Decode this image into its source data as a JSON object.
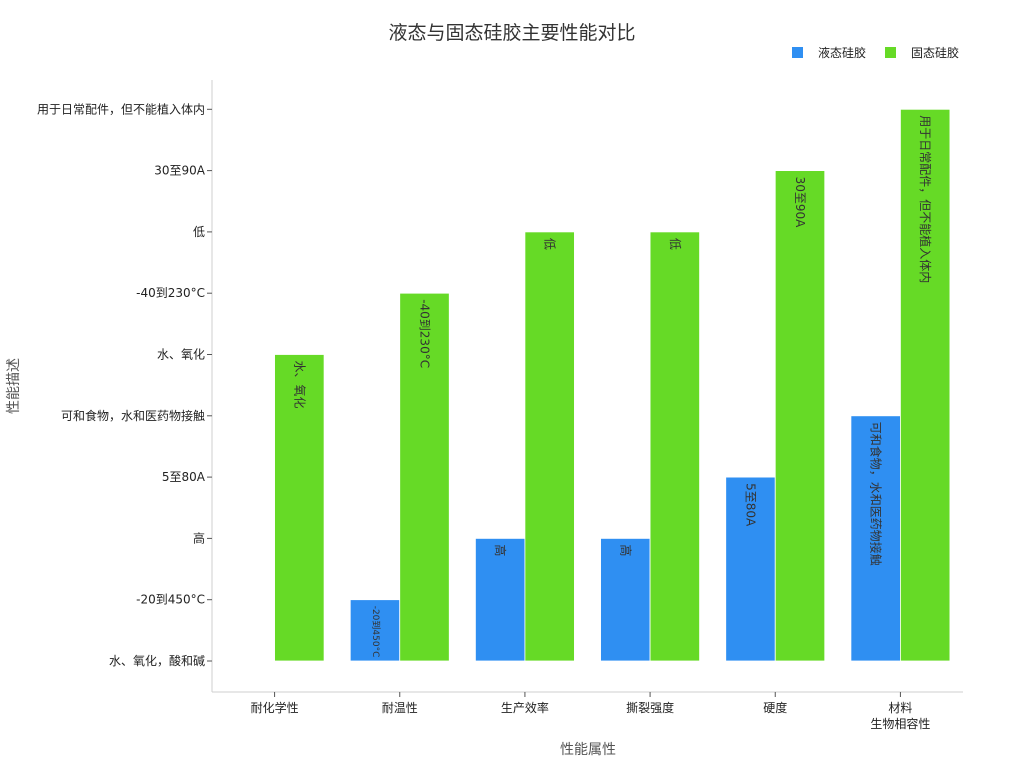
{
  "chart_data": {
    "type": "bar",
    "title": "液态与固态硅胶主要性能对比",
    "xlabel": "性能属性",
    "ylabel": "性能描述",
    "categories": [
      [
        "耐化学性"
      ],
      [
        "耐温性"
      ],
      [
        "生产效率"
      ],
      [
        "撕裂强度"
      ],
      [
        "硬度"
      ],
      [
        "材料",
        "生物相容性"
      ]
    ],
    "y_ticks": [
      "水、氧化，酸和碱",
      "-20到450°C",
      "高",
      "5至80A",
      "可和食物，水和医药物接触",
      "水、氧化",
      "-40到230°C",
      "低",
      "30至90A",
      "用于日常配件，但不能植入体内"
    ],
    "series": [
      {
        "name": "液态硅胶",
        "color": "#2f8ff2",
        "values": [
          0,
          1,
          2,
          2,
          3,
          4
        ],
        "labels": [
          "",
          "-20到450°C",
          "高",
          "高",
          "5至80A",
          "可和食物，水和医药物接触"
        ]
      },
      {
        "name": "固态硅胶",
        "color": "#66da26",
        "values": [
          5,
          6,
          7,
          7,
          8,
          9
        ],
        "labels": [
          "水、氧化",
          "-40到230°C",
          "低",
          "低",
          "30至90A",
          "用于日常配件，但不能植入体内"
        ]
      }
    ],
    "ylim": [
      -0.5,
      9.5
    ],
    "legend": "top-right",
    "grid": false
  }
}
